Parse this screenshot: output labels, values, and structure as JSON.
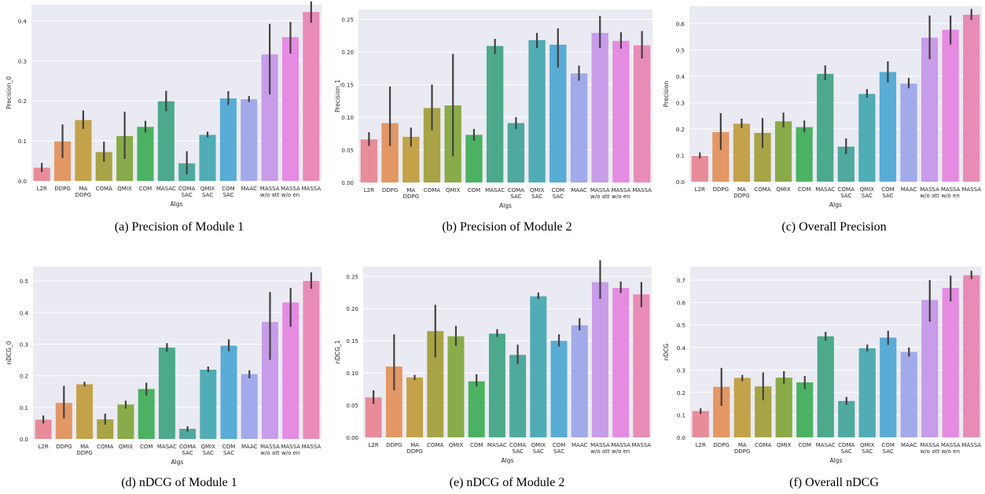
{
  "categories": [
    "L2R",
    "DDPG",
    "MA\nDDPG",
    "COMA",
    "QMIX",
    "COM",
    "MASAC",
    "COMA\nSAC",
    "QMIX\nSAC",
    "COM\nSAC",
    "MAAC",
    "MASSA\nw/o att",
    "MASSA\nw/o en",
    "MASSA"
  ],
  "colors": [
    "#e98c99",
    "#e39764",
    "#c3a24a",
    "#a8a445",
    "#8aab49",
    "#4bb263",
    "#4ca98b",
    "#4fa99f",
    "#50acb5",
    "#58acd6",
    "#a2aaea",
    "#c89ce8",
    "#e68be2",
    "#e88cb7"
  ],
  "chart_data": [
    {
      "type": "bar",
      "caption": "(a)  Precision of Module 1",
      "xlabel": "Algs",
      "ylabel": "Precision_0",
      "ylim": [
        0,
        0.44
      ],
      "yticks": [
        0.0,
        0.1,
        0.2,
        0.3,
        0.4
      ],
      "ytick_labels": [
        "0.0",
        "0.1",
        "0.2",
        "0.3",
        "0.4"
      ],
      "grid": true,
      "values": [
        0.033,
        0.099,
        0.152,
        0.072,
        0.112,
        0.135,
        0.199,
        0.044,
        0.115,
        0.206,
        0.204,
        0.316,
        0.359,
        0.422
      ],
      "error_low": [
        0.022,
        0.057,
        0.13,
        0.048,
        0.055,
        0.121,
        0.174,
        0.016,
        0.109,
        0.19,
        0.197,
        0.216,
        0.318,
        0.395
      ],
      "error_high": [
        0.045,
        0.141,
        0.176,
        0.098,
        0.173,
        0.15,
        0.225,
        0.074,
        0.123,
        0.224,
        0.212,
        0.392,
        0.397,
        0.448
      ]
    },
    {
      "type": "bar",
      "caption": "(b)  Precision of Module 2",
      "xlabel": "Algs",
      "ylabel": "Precision_1",
      "ylim": [
        0,
        0.265
      ],
      "yticks": [
        0.0,
        0.05,
        0.1,
        0.15,
        0.2,
        0.25
      ],
      "ytick_labels": [
        "0.00",
        "0.05",
        "0.10",
        "0.15",
        "0.20",
        "0.25"
      ],
      "grid": true,
      "values": [
        0.066,
        0.091,
        0.07,
        0.114,
        0.118,
        0.073,
        0.209,
        0.091,
        0.218,
        0.211,
        0.167,
        0.229,
        0.217,
        0.21
      ],
      "error_low": [
        0.056,
        0.056,
        0.055,
        0.08,
        0.04,
        0.064,
        0.197,
        0.082,
        0.206,
        0.176,
        0.156,
        0.206,
        0.205,
        0.19
      ],
      "error_high": [
        0.077,
        0.147,
        0.084,
        0.15,
        0.197,
        0.082,
        0.22,
        0.1,
        0.229,
        0.236,
        0.179,
        0.255,
        0.23,
        0.232
      ]
    },
    {
      "type": "bar",
      "caption": "(c)  Overall Precision",
      "xlabel": "Algs",
      "ylabel": "Precision",
      "ylim": [
        0,
        0.665
      ],
      "yticks": [
        0.0,
        0.1,
        0.2,
        0.3,
        0.4,
        0.5,
        0.6
      ],
      "ytick_labels": [
        "0.0",
        "0.1",
        "0.2",
        "0.3",
        "0.4",
        "0.5",
        "0.6"
      ],
      "grid": true,
      "values": [
        0.098,
        0.188,
        0.22,
        0.185,
        0.229,
        0.207,
        0.409,
        0.133,
        0.333,
        0.416,
        0.372,
        0.546,
        0.576,
        0.633
      ],
      "error_low": [
        0.088,
        0.12,
        0.203,
        0.127,
        0.206,
        0.187,
        0.385,
        0.105,
        0.318,
        0.377,
        0.354,
        0.464,
        0.52,
        0.613
      ],
      "error_high": [
        0.111,
        0.26,
        0.239,
        0.241,
        0.262,
        0.232,
        0.441,
        0.164,
        0.351,
        0.456,
        0.394,
        0.63,
        0.63,
        0.655
      ]
    },
    {
      "type": "bar",
      "caption": "(d)  nDCG of Module 1",
      "xlabel": "Algs",
      "ylabel": "nDCG_0",
      "ylim": [
        0,
        0.545
      ],
      "yticks": [
        0.0,
        0.1,
        0.2,
        0.3,
        0.4,
        0.5
      ],
      "ytick_labels": [
        "0.0",
        "0.1",
        "0.2",
        "0.3",
        "0.4",
        "0.5"
      ],
      "grid": true,
      "values": [
        0.061,
        0.114,
        0.173,
        0.062,
        0.109,
        0.158,
        0.289,
        0.032,
        0.219,
        0.295,
        0.205,
        0.37,
        0.432,
        0.5
      ],
      "error_low": [
        0.049,
        0.065,
        0.166,
        0.045,
        0.096,
        0.137,
        0.276,
        0.023,
        0.211,
        0.277,
        0.192,
        0.25,
        0.355,
        0.475
      ],
      "error_high": [
        0.074,
        0.168,
        0.181,
        0.08,
        0.121,
        0.178,
        0.303,
        0.04,
        0.229,
        0.315,
        0.217,
        0.465,
        0.478,
        0.527
      ]
    },
    {
      "type": "bar",
      "caption": "(e)  nDCG of Module 2",
      "xlabel": "Algs",
      "ylabel": "nDCG_1",
      "ylim": [
        0,
        0.265
      ],
      "yticks": [
        0.0,
        0.05,
        0.1,
        0.15,
        0.2,
        0.25
      ],
      "ytick_labels": [
        "0.00",
        "0.05",
        "0.10",
        "0.15",
        "0.20",
        "0.25"
      ],
      "grid": true,
      "values": [
        0.062,
        0.11,
        0.093,
        0.165,
        0.157,
        0.087,
        0.161,
        0.128,
        0.219,
        0.15,
        0.174,
        0.241,
        0.232,
        0.222
      ],
      "error_low": [
        0.052,
        0.073,
        0.089,
        0.124,
        0.142,
        0.079,
        0.156,
        0.114,
        0.215,
        0.141,
        0.166,
        0.215,
        0.224,
        0.202
      ],
      "error_high": [
        0.073,
        0.16,
        0.097,
        0.206,
        0.173,
        0.098,
        0.168,
        0.144,
        0.225,
        0.16,
        0.185,
        0.275,
        0.242,
        0.241
      ]
    },
    {
      "type": "bar",
      "caption": "(f)  Overall nDCG",
      "xlabel": "Algs",
      "ylabel": "nDCG",
      "ylim": [
        0,
        0.76
      ],
      "yticks": [
        0.0,
        0.1,
        0.2,
        0.3,
        0.4,
        0.5,
        0.6,
        0.7
      ],
      "ytick_labels": [
        "0.0",
        "0.1",
        "0.2",
        "0.3",
        "0.4",
        "0.5",
        "0.6",
        "0.7"
      ],
      "grid": true,
      "values": [
        0.117,
        0.225,
        0.265,
        0.227,
        0.266,
        0.245,
        0.45,
        0.162,
        0.397,
        0.444,
        0.38,
        0.612,
        0.665,
        0.722
      ],
      "error_low": [
        0.104,
        0.14,
        0.25,
        0.165,
        0.238,
        0.215,
        0.43,
        0.145,
        0.383,
        0.412,
        0.36,
        0.515,
        0.605,
        0.705
      ],
      "error_high": [
        0.129,
        0.309,
        0.278,
        0.289,
        0.295,
        0.273,
        0.47,
        0.18,
        0.413,
        0.475,
        0.4,
        0.7,
        0.72,
        0.742
      ]
    }
  ]
}
